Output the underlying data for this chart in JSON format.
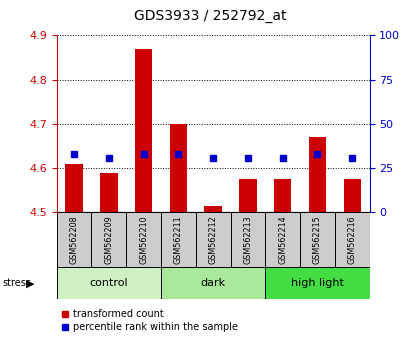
{
  "title": "GDS3933 / 252792_at",
  "samples": [
    "GSM562208",
    "GSM562209",
    "GSM562210",
    "GSM562211",
    "GSM562212",
    "GSM562213",
    "GSM562214",
    "GSM562215",
    "GSM562216"
  ],
  "transformed_counts": [
    4.61,
    4.59,
    4.87,
    4.7,
    4.515,
    4.575,
    4.575,
    4.67,
    4.575
  ],
  "percentile_ranks": [
    33,
    31,
    33,
    33,
    31,
    31,
    31,
    33,
    31
  ],
  "ylim_left": [
    4.5,
    4.9
  ],
  "ylim_right": [
    0,
    100
  ],
  "yticks_left": [
    4.5,
    4.6,
    4.7,
    4.8,
    4.9
  ],
  "yticks_right": [
    0,
    25,
    50,
    75,
    100
  ],
  "groups": [
    {
      "label": "control",
      "indices": [
        0,
        1,
        2
      ],
      "color": "#cff0c4"
    },
    {
      "label": "dark",
      "indices": [
        3,
        4,
        5
      ],
      "color": "#a8e898"
    },
    {
      "label": "high light",
      "indices": [
        6,
        7,
        8
      ],
      "color": "#44dd44"
    }
  ],
  "bar_color": "#cc0000",
  "dot_color": "#0000cc",
  "bar_bottom": 4.5,
  "right_axis_color": "#0000cc",
  "left_axis_color": "#cc0000",
  "sample_box_color": "#cccccc",
  "legend_items": [
    {
      "color": "#cc0000",
      "label": "transformed count"
    },
    {
      "color": "#0000cc",
      "label": "percentile rank within the sample"
    }
  ]
}
